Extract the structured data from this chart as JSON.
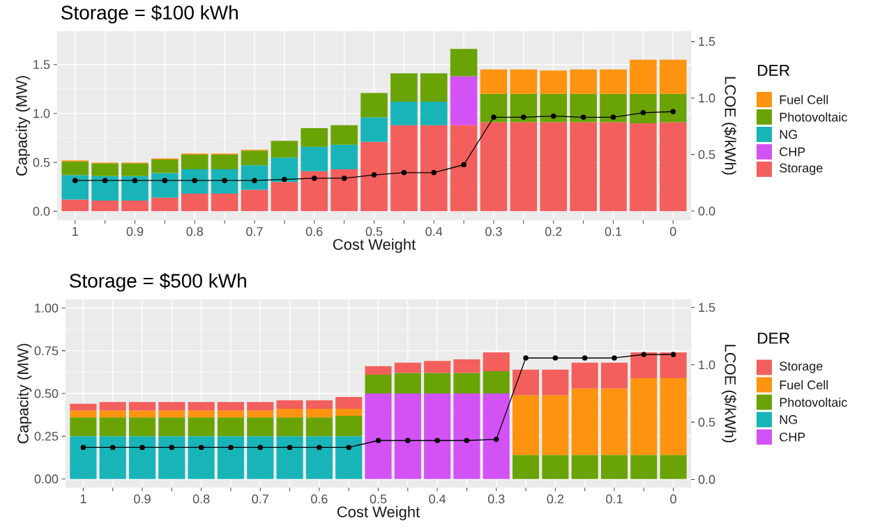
{
  "chart_data": [
    {
      "type": "bar",
      "stacked": true,
      "title": "Storage = $100 kWh",
      "xlabel": "Cost Weight",
      "ylabel": "Capacity (MW)",
      "y2label": "LCOE ($/kWh)",
      "legend_title": "DER",
      "legend": "right",
      "grid": true,
      "categories": [
        "1",
        null,
        "0.9",
        null,
        "0.8",
        null,
        "0.7",
        null,
        "0.6",
        null,
        "0.5",
        null,
        "0.4",
        null,
        "0.3",
        null,
        "0.2",
        null,
        "0.1",
        null,
        "0"
      ],
      "ylim": [
        -0.09,
        1.84
      ],
      "yticks": [
        {
          "value": 0,
          "label": "0.0"
        },
        {
          "value": 0.5,
          "label": "0.5"
        },
        {
          "value": 1,
          "label": "1.0"
        },
        {
          "value": 1.5,
          "label": "1.5"
        }
      ],
      "y2lim": [
        -0.08,
        1.59
      ],
      "y2ticks": [
        {
          "value": 0,
          "label": "0.0"
        },
        {
          "value": 0.5,
          "label": "0.5"
        },
        {
          "value": 1,
          "label": "1.0"
        },
        {
          "value": 1.5,
          "label": "1.5"
        }
      ],
      "series": [
        {
          "name": "Storage",
          "color": "#f25f5c",
          "values": [
            0.12,
            0.11,
            0.11,
            0.14,
            0.18,
            0.18,
            0.22,
            0.3,
            0.41,
            0.43,
            0.71,
            0.88,
            0.88,
            0.88,
            0.91,
            0.91,
            0.91,
            0.91,
            0.91,
            0.9,
            0.91
          ]
        },
        {
          "name": "CHP",
          "color": "#d252f5",
          "values": [
            null,
            null,
            null,
            null,
            null,
            null,
            null,
            null,
            null,
            null,
            null,
            null,
            null,
            0.5,
            null,
            null,
            null,
            null,
            null,
            null,
            null
          ]
        },
        {
          "name": "NG",
          "color": "#18b4b8",
          "values": [
            0.25,
            0.25,
            0.25,
            0.25,
            0.25,
            0.25,
            0.25,
            0.25,
            0.25,
            0.25,
            0.25,
            0.24,
            0.24,
            null,
            null,
            null,
            null,
            null,
            null,
            null,
            null
          ]
        },
        {
          "name": "Photovoltaic",
          "color": "#6aa305",
          "values": [
            0.14,
            0.13,
            0.13,
            0.14,
            0.15,
            0.15,
            0.15,
            0.17,
            0.19,
            0.2,
            0.25,
            0.29,
            0.29,
            0.28,
            0.29,
            0.29,
            0.29,
            0.29,
            0.29,
            0.3,
            0.29
          ]
        },
        {
          "name": "Fuel Cell",
          "color": "#fd930f",
          "values": [
            0.01,
            0.01,
            0.01,
            0.01,
            0.01,
            0.01,
            0.01,
            null,
            null,
            null,
            null,
            null,
            null,
            null,
            0.25,
            0.25,
            0.24,
            0.25,
            0.25,
            0.35,
            0.35
          ]
        },
        {
          "type": "line",
          "axis": "y2",
          "color": "#000000",
          "marker": "circle",
          "line_style": "solid",
          "values": [
            0.27,
            0.27,
            0.27,
            0.27,
            0.27,
            0.27,
            0.27,
            0.28,
            0.29,
            0.29,
            0.32,
            0.34,
            0.34,
            0.41,
            0.83,
            0.83,
            0.84,
            0.83,
            0.83,
            0.87,
            0.88
          ]
        }
      ]
    },
    {
      "type": "bar",
      "stacked": true,
      "title": "Storage = $500 kWh",
      "xlabel": "Cost Weight",
      "ylabel": "Capacity (MW)",
      "y2label": "LCOE ($/kWh)",
      "legend_title": "DER",
      "legend": "right",
      "grid": true,
      "categories": [
        "1",
        null,
        "0.9",
        null,
        "0.8",
        null,
        "0.7",
        null,
        "0.6",
        null,
        "0.5",
        null,
        "0.4",
        null,
        "0.3",
        null,
        "0.2",
        null,
        "0.1",
        null,
        "0"
      ],
      "ylim": [
        -0.05,
        1.05
      ],
      "yticks": [
        {
          "value": 0,
          "label": "0.00"
        },
        {
          "value": 0.25,
          "label": "0.25"
        },
        {
          "value": 0.5,
          "label": "0.50"
        },
        {
          "value": 0.75,
          "label": "0.75"
        },
        {
          "value": 1,
          "label": "1.00"
        }
      ],
      "y2lim": [
        -0.07,
        1.57
      ],
      "y2ticks": [
        {
          "value": 0,
          "label": "0.0"
        },
        {
          "value": 0.5,
          "label": "0.5"
        },
        {
          "value": 1,
          "label": "1.0"
        },
        {
          "value": 1.5,
          "label": "1.5"
        }
      ],
      "series": [
        {
          "name": "CHP",
          "color": "#d252f5",
          "values": [
            null,
            null,
            null,
            null,
            null,
            null,
            null,
            null,
            null,
            null,
            0.5,
            0.5,
            0.5,
            0.5,
            0.5,
            null,
            null,
            null,
            null,
            null,
            null
          ]
        },
        {
          "name": "NG",
          "color": "#18b4b8",
          "values": [
            0.25,
            0.25,
            0.25,
            0.25,
            0.25,
            0.25,
            0.25,
            0.25,
            0.25,
            0.25,
            null,
            null,
            null,
            null,
            null,
            null,
            null,
            null,
            null,
            null,
            null
          ]
        },
        {
          "name": "Photovoltaic",
          "color": "#6aa305",
          "values": [
            0.11,
            0.11,
            0.11,
            0.11,
            0.11,
            0.11,
            0.11,
            0.11,
            0.11,
            0.12,
            0.11,
            0.12,
            0.12,
            0.12,
            0.13,
            0.14,
            0.14,
            0.14,
            0.14,
            0.14,
            0.14
          ]
        },
        {
          "name": "Fuel Cell",
          "color": "#fd930f",
          "values": [
            0.04,
            0.04,
            0.04,
            0.04,
            0.04,
            0.04,
            0.04,
            0.05,
            0.05,
            0.04,
            null,
            null,
            null,
            null,
            null,
            0.35,
            0.35,
            0.39,
            0.39,
            0.45,
            0.45
          ]
        },
        {
          "name": "Storage",
          "color": "#f25f5c",
          "values": [
            0.04,
            0.05,
            0.05,
            0.05,
            0.05,
            0.05,
            0.05,
            0.05,
            0.05,
            0.07,
            0.05,
            0.06,
            0.07,
            0.08,
            0.11,
            0.15,
            0.15,
            0.15,
            0.15,
            0.15,
            0.15
          ]
        },
        {
          "type": "line",
          "axis": "y2",
          "color": "#000000",
          "marker": "circle",
          "line_style": "solid",
          "values": [
            0.28,
            0.28,
            0.28,
            0.28,
            0.28,
            0.28,
            0.28,
            0.28,
            0.28,
            0.28,
            0.34,
            0.34,
            0.34,
            0.34,
            0.35,
            1.06,
            1.06,
            1.06,
            1.06,
            1.09,
            1.09
          ]
        }
      ]
    }
  ]
}
